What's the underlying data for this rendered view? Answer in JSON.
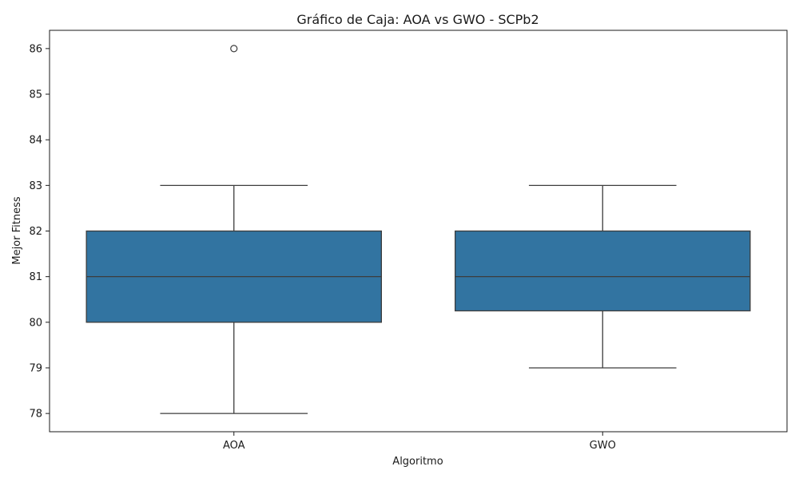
{
  "chart_data": {
    "type": "box",
    "title": "Gráfico de Caja: AOA vs GWO - SCPb2",
    "xlabel": "Algoritmo",
    "ylabel": "Mejor Fitness",
    "categories": [
      "AOA",
      "GWO"
    ],
    "ylim": [
      77.6,
      86.4
    ],
    "yticks": [
      78,
      79,
      80,
      81,
      82,
      83,
      84,
      85,
      86
    ],
    "grid": false,
    "box_color": "#3274a1",
    "line_color": "#3d3d3d",
    "series": [
      {
        "category": "AOA",
        "whisker_low": 78,
        "q1": 80,
        "median": 81,
        "q3": 82,
        "whisker_high": 83,
        "outliers": [
          86
        ]
      },
      {
        "category": "GWO",
        "whisker_low": 79,
        "q1": 80.25,
        "median": 81,
        "q3": 82,
        "whisker_high": 83,
        "outliers": []
      }
    ]
  }
}
